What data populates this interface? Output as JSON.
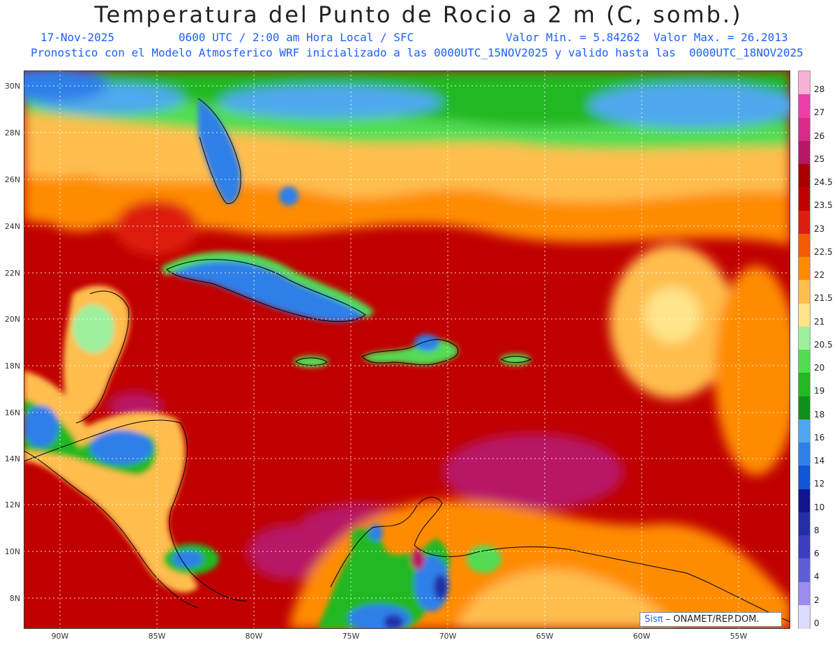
{
  "title": "Temperatura del Punto de Rocio a 2 m (C, somb.)",
  "header": {
    "date": "17-Nov-2025",
    "time": "0600 UTC / 2:00 am Hora Local / SFC",
    "range": "Valor Min. = 5.84262  Valor Max. = 26.2013",
    "description": "Pronostico con el Modelo Atmosferico WRF inicializado a las 0000UTC_15NOV2025 y valido hasta las  0000UTC_18NOV2025"
  },
  "axes": {
    "lat_labels": [
      "30N",
      "28N",
      "26N",
      "24N",
      "22N",
      "20N",
      "18N",
      "16N",
      "14N",
      "12N",
      "10N",
      "8N"
    ],
    "lon_labels": [
      "90W",
      "85W",
      "80W",
      "75W",
      "70W",
      "65W",
      "60W",
      "55W"
    ]
  },
  "colorbar": {
    "labels": [
      "28",
      "27",
      "26",
      "25",
      "24.5",
      "23.5",
      "23",
      "22.5",
      "22",
      "21.5",
      "21",
      "20.5",
      "20",
      "19",
      "18",
      "16",
      "14",
      "12",
      "10",
      "8",
      "6",
      "4",
      "2",
      "0"
    ],
    "colors": [
      "#f6b2d6",
      "#ee3fa8",
      "#d92a8a",
      "#b81766",
      "#a80000",
      "#c00000",
      "#dd1d10",
      "#f25c00",
      "#ff8c00",
      "#ffbe4d",
      "#ffe48a",
      "#9ef09e",
      "#52dc52",
      "#22b822",
      "#0f8f1b",
      "#4fa8ee",
      "#2f7fe8",
      "#1156d6",
      "#12138f",
      "#232ea8",
      "#3b3ec0",
      "#5e5ed6",
      "#9a8cf0",
      "#dcdcff"
    ]
  },
  "credit": {
    "logo": "Sisπ",
    "text": " – ONAMET/REP.DOM."
  }
}
